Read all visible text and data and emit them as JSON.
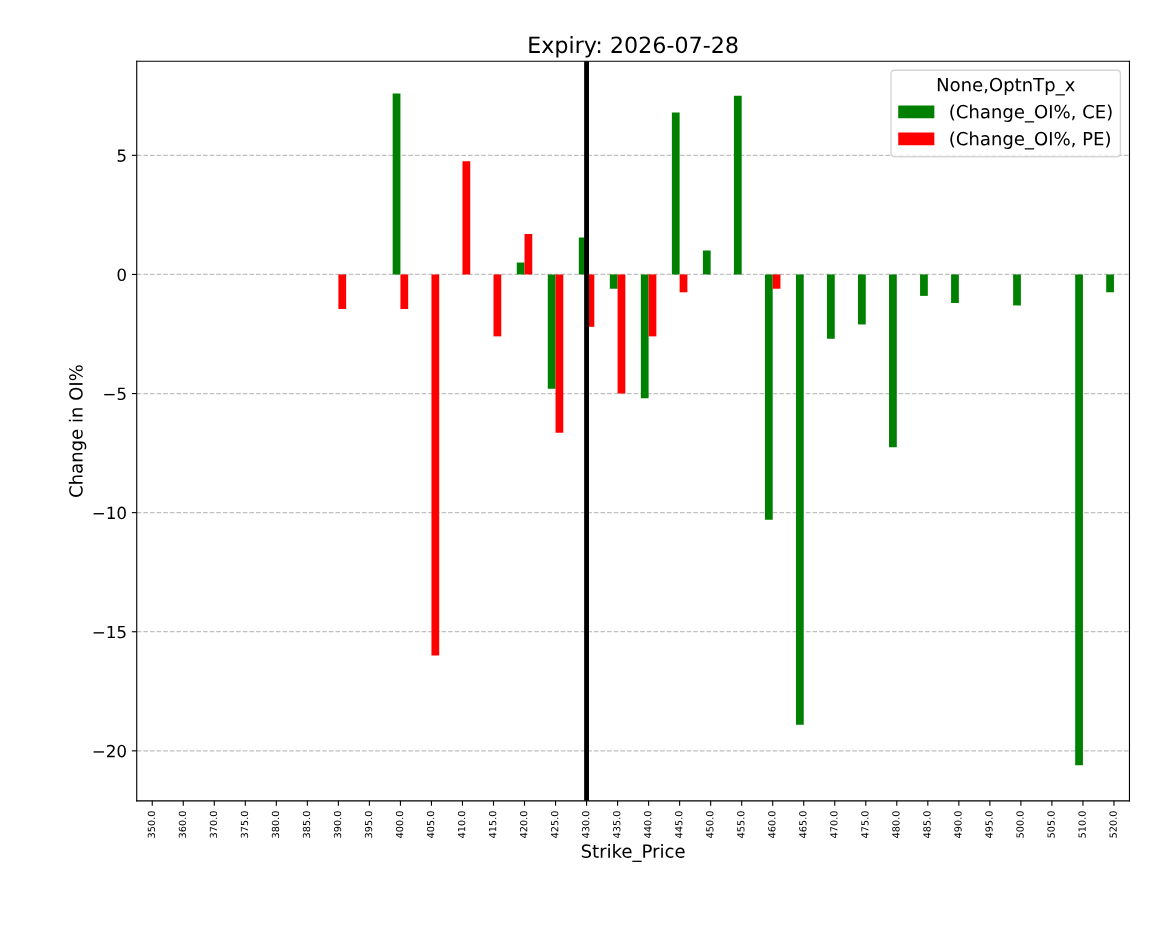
{
  "chart_data": {
    "type": "bar",
    "title": "Expiry: 2026-07-28",
    "xlabel": "Strike_Price",
    "ylabel": "Change in OI%",
    "legend_title": "None,OptnTp_x",
    "categories": [
      "350.0",
      "360.0",
      "370.0",
      "375.0",
      "380.0",
      "385.0",
      "390.0",
      "395.0",
      "400.0",
      "405.0",
      "410.0",
      "415.0",
      "420.0",
      "425.0",
      "430.0",
      "435.0",
      "440.0",
      "445.0",
      "450.0",
      "455.0",
      "460.0",
      "465.0",
      "470.0",
      "475.0",
      "480.0",
      "485.0",
      "490.0",
      "495.0",
      "500.0",
      "505.0",
      "510.0",
      "520.0"
    ],
    "series": [
      {
        "name": "(Change_OI%, CE)",
        "color": "#008000",
        "values": [
          null,
          null,
          null,
          null,
          null,
          null,
          null,
          null,
          7.6,
          null,
          null,
          null,
          0.5,
          -4.8,
          1.55,
          -0.6,
          -5.2,
          6.8,
          1.0,
          7.5,
          -10.3,
          -18.9,
          -2.7,
          -2.1,
          -7.25,
          -0.9,
          -1.2,
          null,
          -1.3,
          null,
          -20.6,
          -0.75
        ]
      },
      {
        "name": "(Change_OI%, PE)",
        "color": "#ff0000",
        "values": [
          null,
          null,
          null,
          null,
          null,
          null,
          -1.45,
          null,
          -1.45,
          -16.0,
          4.75,
          -2.6,
          1.7,
          -6.65,
          -2.2,
          -5.0,
          -2.6,
          -0.75,
          null,
          null,
          -0.6,
          null,
          null,
          null,
          null,
          null,
          null,
          null,
          null,
          null,
          null,
          null
        ]
      }
    ],
    "ylim": [
      -22.1,
      8.95
    ],
    "yticks": [
      {
        "value": -20,
        "label": "−20"
      },
      {
        "value": -15,
        "label": "−15"
      },
      {
        "value": -10,
        "label": "−10"
      },
      {
        "value": -5,
        "label": "−5"
      },
      0,
      5
    ],
    "ref_lines": [
      {
        "axis": "x",
        "value": "430.0",
        "color": "#000000"
      }
    ],
    "grid": "y",
    "legend": "top right"
  }
}
